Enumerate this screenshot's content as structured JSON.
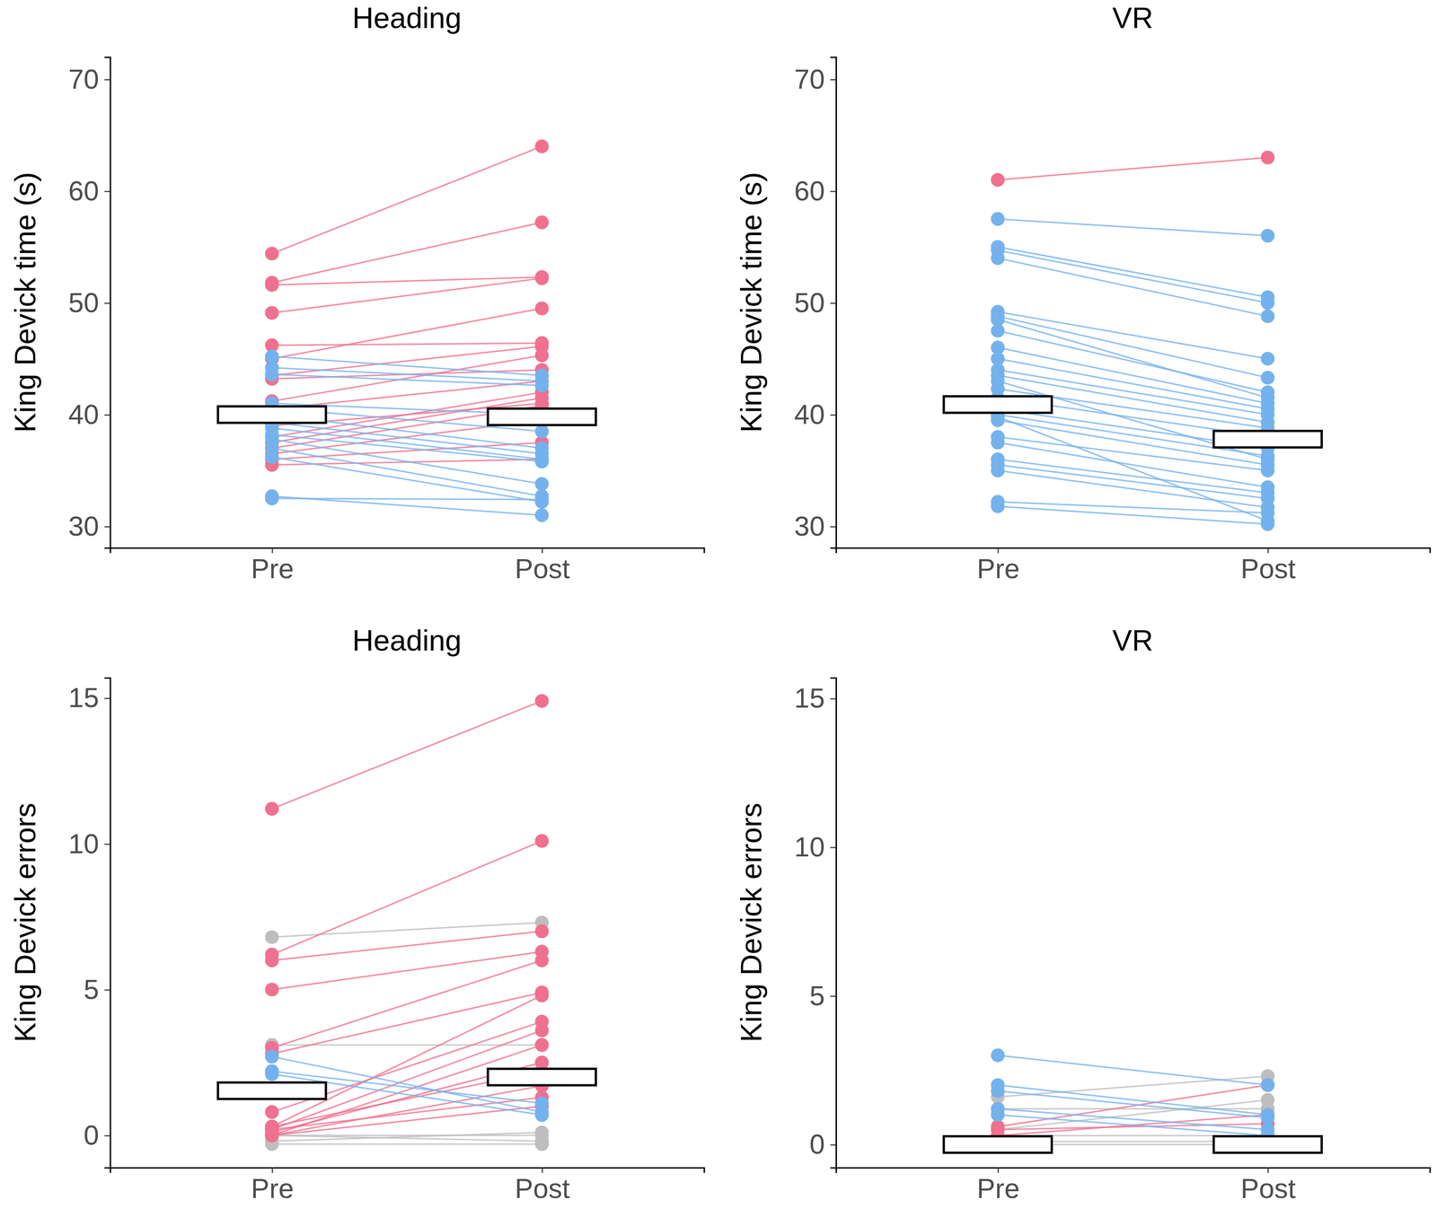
{
  "chart_data": [
    {
      "type": "line",
      "title": "Heading",
      "y_label": "King Devick time (s)",
      "categories": [
        "Pre",
        "Post"
      ],
      "ylim": [
        28.1,
        72.0
      ],
      "yticks": [
        30,
        40,
        50,
        60,
        70
      ],
      "grid": false,
      "marker": "circle",
      "series": [
        {
          "color": "#F0708F",
          "values": [
            54.4,
            64.0
          ]
        },
        {
          "color": "#F0708F",
          "values": [
            51.8,
            57.2
          ]
        },
        {
          "color": "#F0708F",
          "values": [
            51.6,
            52.3
          ]
        },
        {
          "color": "#F0708F",
          "values": [
            49.1,
            52.2
          ]
        },
        {
          "color": "#F0708F",
          "values": [
            46.2,
            46.4
          ]
        },
        {
          "color": "#F0708F",
          "values": [
            45.0,
            49.5
          ]
        },
        {
          "color": "#F0708F",
          "values": [
            43.5,
            46.1
          ]
        },
        {
          "color": "#F0708F",
          "values": [
            43.2,
            44.0
          ]
        },
        {
          "color": "#F0708F",
          "values": [
            41.2,
            45.3
          ]
        },
        {
          "color": "#F0708F",
          "values": [
            40.5,
            43.0
          ]
        },
        {
          "color": "#F0708F",
          "values": [
            39.0,
            41.0
          ]
        },
        {
          "color": "#F0708F",
          "values": [
            38.0,
            42.0
          ]
        },
        {
          "color": "#F0708F",
          "values": [
            37.5,
            41.5
          ]
        },
        {
          "color": "#F0708F",
          "values": [
            37.0,
            40.8
          ]
        },
        {
          "color": "#F0708F",
          "values": [
            36.5,
            39.5
          ]
        },
        {
          "color": "#F0708F",
          "values": [
            36.0,
            37.5
          ]
        },
        {
          "color": "#F0708F",
          "values": [
            35.5,
            36.0
          ]
        },
        {
          "color": "#74B2EE",
          "values": [
            45.2,
            43.5
          ]
        },
        {
          "color": "#74B2EE",
          "values": [
            44.2,
            43.0
          ]
        },
        {
          "color": "#74B2EE",
          "values": [
            43.6,
            42.6
          ]
        },
        {
          "color": "#74B2EE",
          "values": [
            41.0,
            40.0
          ]
        },
        {
          "color": "#74B2EE",
          "values": [
            40.6,
            38.5
          ]
        },
        {
          "color": "#74B2EE",
          "values": [
            40.0,
            37.0
          ]
        },
        {
          "color": "#74B2EE",
          "values": [
            39.3,
            36.5
          ]
        },
        {
          "color": "#74B2EE",
          "values": [
            38.8,
            36.0
          ]
        },
        {
          "color": "#74B2EE",
          "values": [
            38.2,
            35.8
          ]
        },
        {
          "color": "#74B2EE",
          "values": [
            37.8,
            33.8
          ]
        },
        {
          "color": "#74B2EE",
          "values": [
            37.0,
            32.7
          ]
        },
        {
          "color": "#74B2EE",
          "values": [
            36.2,
            32.2
          ]
        },
        {
          "color": "#74B2EE",
          "values": [
            32.7,
            31.0
          ]
        },
        {
          "color": "#74B2EE",
          "values": [
            32.5,
            32.4
          ]
        },
        {
          "type": "crossbar",
          "color": "#000000",
          "values": [
            40.0,
            39.8
          ]
        }
      ]
    },
    {
      "type": "line",
      "title": "VR",
      "y_label": "King Devick time (s)",
      "categories": [
        "Pre",
        "Post"
      ],
      "ylim": [
        28.1,
        72.0
      ],
      "yticks": [
        30,
        40,
        50,
        60,
        70
      ],
      "grid": false,
      "marker": "circle",
      "series": [
        {
          "color": "#F0708F",
          "values": [
            61.0,
            63.0
          ]
        },
        {
          "color": "#74B2EE",
          "values": [
            57.5,
            56.0
          ]
        },
        {
          "color": "#74B2EE",
          "values": [
            55.0,
            50.5
          ]
        },
        {
          "color": "#74B2EE",
          "values": [
            54.7,
            50.0
          ]
        },
        {
          "color": "#74B2EE",
          "values": [
            54.0,
            48.8
          ]
        },
        {
          "color": "#74B2EE",
          "values": [
            49.2,
            45.0
          ]
        },
        {
          "color": "#74B2EE",
          "values": [
            48.8,
            43.3
          ]
        },
        {
          "color": "#74B2EE",
          "values": [
            48.5,
            41.5
          ]
        },
        {
          "color": "#74B2EE",
          "values": [
            47.5,
            42.0
          ]
        },
        {
          "color": "#74B2EE",
          "values": [
            46.0,
            41.0
          ]
        },
        {
          "color": "#74B2EE",
          "values": [
            45.0,
            40.5
          ]
        },
        {
          "color": "#74B2EE",
          "values": [
            44.0,
            40.0
          ]
        },
        {
          "color": "#74B2EE",
          "values": [
            43.5,
            39.3
          ]
        },
        {
          "color": "#74B2EE",
          "values": [
            43.0,
            36.0
          ]
        },
        {
          "color": "#74B2EE",
          "values": [
            42.3,
            38.8
          ]
        },
        {
          "color": "#74B2EE",
          "values": [
            41.5,
            38.0
          ]
        },
        {
          "color": "#74B2EE",
          "values": [
            40.5,
            37.0
          ]
        },
        {
          "color": "#74B2EE",
          "values": [
            40.0,
            36.3
          ]
        },
        {
          "color": "#74B2EE",
          "values": [
            39.8,
            30.5
          ]
        },
        {
          "color": "#74B2EE",
          "values": [
            39.5,
            35.5
          ]
        },
        {
          "color": "#74B2EE",
          "values": [
            38.0,
            35.0
          ]
        },
        {
          "color": "#74B2EE",
          "values": [
            37.5,
            33.5
          ]
        },
        {
          "color": "#74B2EE",
          "values": [
            36.0,
            33.0
          ]
        },
        {
          "color": "#74B2EE",
          "values": [
            35.5,
            32.5
          ]
        },
        {
          "color": "#74B2EE",
          "values": [
            35.0,
            31.7
          ]
        },
        {
          "color": "#74B2EE",
          "values": [
            32.2,
            31.2
          ]
        },
        {
          "color": "#74B2EE",
          "values": [
            31.8,
            30.2
          ]
        },
        {
          "type": "crossbar",
          "color": "#000000",
          "values": [
            40.9,
            37.8
          ]
        }
      ]
    },
    {
      "type": "line",
      "title": "Heading",
      "y_label": "King Devick errors",
      "categories": [
        "Pre",
        "Post"
      ],
      "ylim": [
        -1.1,
        15.7
      ],
      "yticks": [
        0,
        5,
        10,
        15
      ],
      "grid": false,
      "marker": "circle",
      "series": [
        {
          "color": "#BEBEBE",
          "values": [
            6.8,
            7.3
          ]
        },
        {
          "color": "#BEBEBE",
          "values": [
            3.1,
            3.1
          ]
        },
        {
          "color": "#BEBEBE",
          "values": [
            0.0,
            0.0
          ]
        },
        {
          "color": "#BEBEBE",
          "values": [
            -0.3,
            -0.3
          ]
        },
        {
          "color": "#BEBEBE",
          "values": [
            -0.2,
            0.1
          ]
        },
        {
          "color": "#BEBEBE",
          "values": [
            0.0,
            -0.2
          ]
        },
        {
          "color": "#F0708F",
          "values": [
            11.2,
            14.9
          ]
        },
        {
          "color": "#F0708F",
          "values": [
            6.2,
            10.1
          ]
        },
        {
          "color": "#F0708F",
          "values": [
            6.0,
            7.0
          ]
        },
        {
          "color": "#F0708F",
          "values": [
            5.0,
            6.3
          ]
        },
        {
          "color": "#F0708F",
          "values": [
            3.0,
            6.0
          ]
        },
        {
          "color": "#F0708F",
          "values": [
            2.8,
            4.9
          ]
        },
        {
          "color": "#F0708F",
          "values": [
            0.3,
            4.8
          ]
        },
        {
          "color": "#F0708F",
          "values": [
            0.8,
            3.9
          ]
        },
        {
          "color": "#F0708F",
          "values": [
            0.2,
            3.6
          ]
        },
        {
          "color": "#F0708F",
          "values": [
            0.0,
            3.1
          ]
        },
        {
          "color": "#F0708F",
          "values": [
            0.1,
            2.5
          ]
        },
        {
          "color": "#F0708F",
          "values": [
            0.3,
            2.2
          ]
        },
        {
          "color": "#F0708F",
          "values": [
            0.0,
            1.7
          ]
        },
        {
          "color": "#F0708F",
          "values": [
            0.2,
            1.3
          ]
        },
        {
          "color": "#F0708F",
          "values": [
            0.0,
            1.0
          ]
        },
        {
          "color": "#74B2EE",
          "values": [
            2.7,
            0.8
          ]
        },
        {
          "color": "#74B2EE",
          "values": [
            2.2,
            1.1
          ]
        },
        {
          "color": "#74B2EE",
          "values": [
            2.1,
            0.7
          ]
        },
        {
          "type": "crossbar",
          "color": "#000000",
          "values": [
            1.53,
            2.0
          ]
        }
      ]
    },
    {
      "type": "line",
      "title": "VR",
      "y_label": "King Devick errors",
      "categories": [
        "Pre",
        "Post"
      ],
      "ylim": [
        -0.77,
        15.7
      ],
      "yticks": [
        0,
        5,
        10,
        15
      ],
      "grid": false,
      "marker": "circle",
      "series": [
        {
          "color": "#BEBEBE",
          "values": [
            1.6,
            2.3
          ]
        },
        {
          "color": "#BEBEBE",
          "values": [
            1.2,
            1.2
          ]
        },
        {
          "color": "#BEBEBE",
          "values": [
            0.5,
            1.5
          ]
        },
        {
          "color": "#BEBEBE",
          "values": [
            0.3,
            0.3
          ]
        },
        {
          "color": "#BEBEBE",
          "values": [
            0.1,
            0.1
          ]
        },
        {
          "color": "#BEBEBE",
          "values": [
            0.0,
            0.0
          ]
        },
        {
          "color": "#F0708F",
          "values": [
            0.6,
            2.0
          ]
        },
        {
          "color": "#F0708F",
          "values": [
            0.3,
            1.0
          ]
        },
        {
          "color": "#F0708F",
          "values": [
            0.5,
            0.7
          ]
        },
        {
          "color": "#74B2EE",
          "values": [
            3.0,
            2.0
          ]
        },
        {
          "color": "#74B2EE",
          "values": [
            2.0,
            1.0
          ]
        },
        {
          "color": "#74B2EE",
          "values": [
            1.8,
            0.9
          ]
        },
        {
          "color": "#74B2EE",
          "values": [
            1.2,
            0.5
          ]
        },
        {
          "color": "#74B2EE",
          "values": [
            1.0,
            0.3
          ]
        },
        {
          "type": "crossbar",
          "color": "#000000",
          "values": [
            0.0,
            0.0
          ]
        }
      ]
    }
  ]
}
